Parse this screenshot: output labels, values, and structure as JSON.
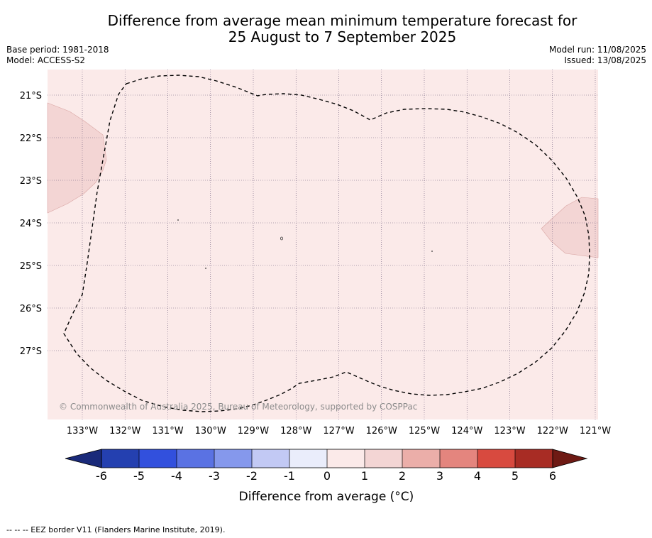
{
  "title": {
    "line1": "Difference from average mean minimum temperature forecast for",
    "line2": "25 August to 7 September 2025"
  },
  "meta_left": {
    "base_period": "Base period: 1981-2018",
    "model": "Model: ACCESS-S2"
  },
  "meta_right": {
    "model_run": "Model run: 11/08/2025",
    "issued": "Issued: 13/08/2025"
  },
  "map": {
    "lat_labels": [
      "21°S",
      "22°S",
      "23°S",
      "24°S",
      "25°S",
      "26°S",
      "27°S"
    ],
    "lon_labels": [
      "133°W",
      "132°W",
      "131°W",
      "130°W",
      "129°W",
      "128°W",
      "127°W",
      "126°W",
      "125°W",
      "124°W",
      "123°W",
      "122°W",
      "121°W"
    ],
    "copyright": "© Commonwealth of Australia 2025, Bureau of Meteorology, supported by COSPPac",
    "background_color": "#fbeae9",
    "anomaly_color": "#f3d5d4"
  },
  "colorbar": {
    "ticks": [
      "-6",
      "-5",
      "-4",
      "-3",
      "-2",
      "-1",
      "0",
      "1",
      "2",
      "3",
      "4",
      "5",
      "6"
    ],
    "colors": [
      "#1a2a7a",
      "#2440b0",
      "#3250dd",
      "#5a72e3",
      "#8598ec",
      "#c2c9f4",
      "#eaedfb",
      "#fbeae9",
      "#f3d5d4",
      "#ebaea9",
      "#e4857e",
      "#d84a3f",
      "#a82c24",
      "#6e1a14"
    ],
    "label": "Difference from average (°C)"
  },
  "footnote": "-- -- -- EEZ border V11 (Flanders Marine Institute, 2019)."
}
